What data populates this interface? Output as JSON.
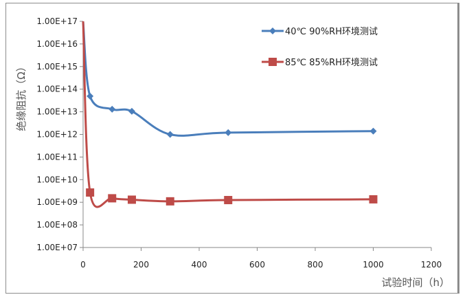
{
  "chart_data": {
    "type": "line",
    "title": "",
    "xlabel": "试验时间（h）",
    "ylabel": "绝缘阻抗（Ω）",
    "xlim": [
      0,
      1200
    ],
    "ylim": [
      10000000.0,
      1e+17
    ],
    "yscale": "log",
    "xticks": [
      "0",
      "200",
      "400",
      "600",
      "800",
      "1000",
      "1200"
    ],
    "yticks": [
      "1.00E+07",
      "1.00E+08",
      "1.00E+09",
      "1.00E+10",
      "1.00E+11",
      "1.00E+12",
      "1.00E+13",
      "1.00E+14",
      "1.00E+15",
      "1.00E+16",
      "1.00E+17"
    ],
    "grid": false,
    "legend_position": "top-right",
    "series": [
      {
        "name": "40℃ 90%RH环境测试",
        "color": "#4a7ebb",
        "marker": "diamond",
        "x": [
          0,
          24,
          100,
          168,
          300,
          500,
          1000
        ],
        "y": [
          1e+17,
          49000000000000.0,
          13000000000000.0,
          10500000000000.0,
          1000000000000.0,
          1200000000000.0,
          1400000000000.0
        ]
      },
      {
        "name": "85℃ 85%RH环境测试",
        "color": "#be4b48",
        "marker": "square",
        "x": [
          0,
          24,
          100,
          168,
          300,
          500,
          1000
        ],
        "y": [
          1e+17,
          2700000000.0,
          1500000000.0,
          1300000000.0,
          1100000000.0,
          1250000000.0,
          1350000000.0
        ]
      }
    ]
  }
}
